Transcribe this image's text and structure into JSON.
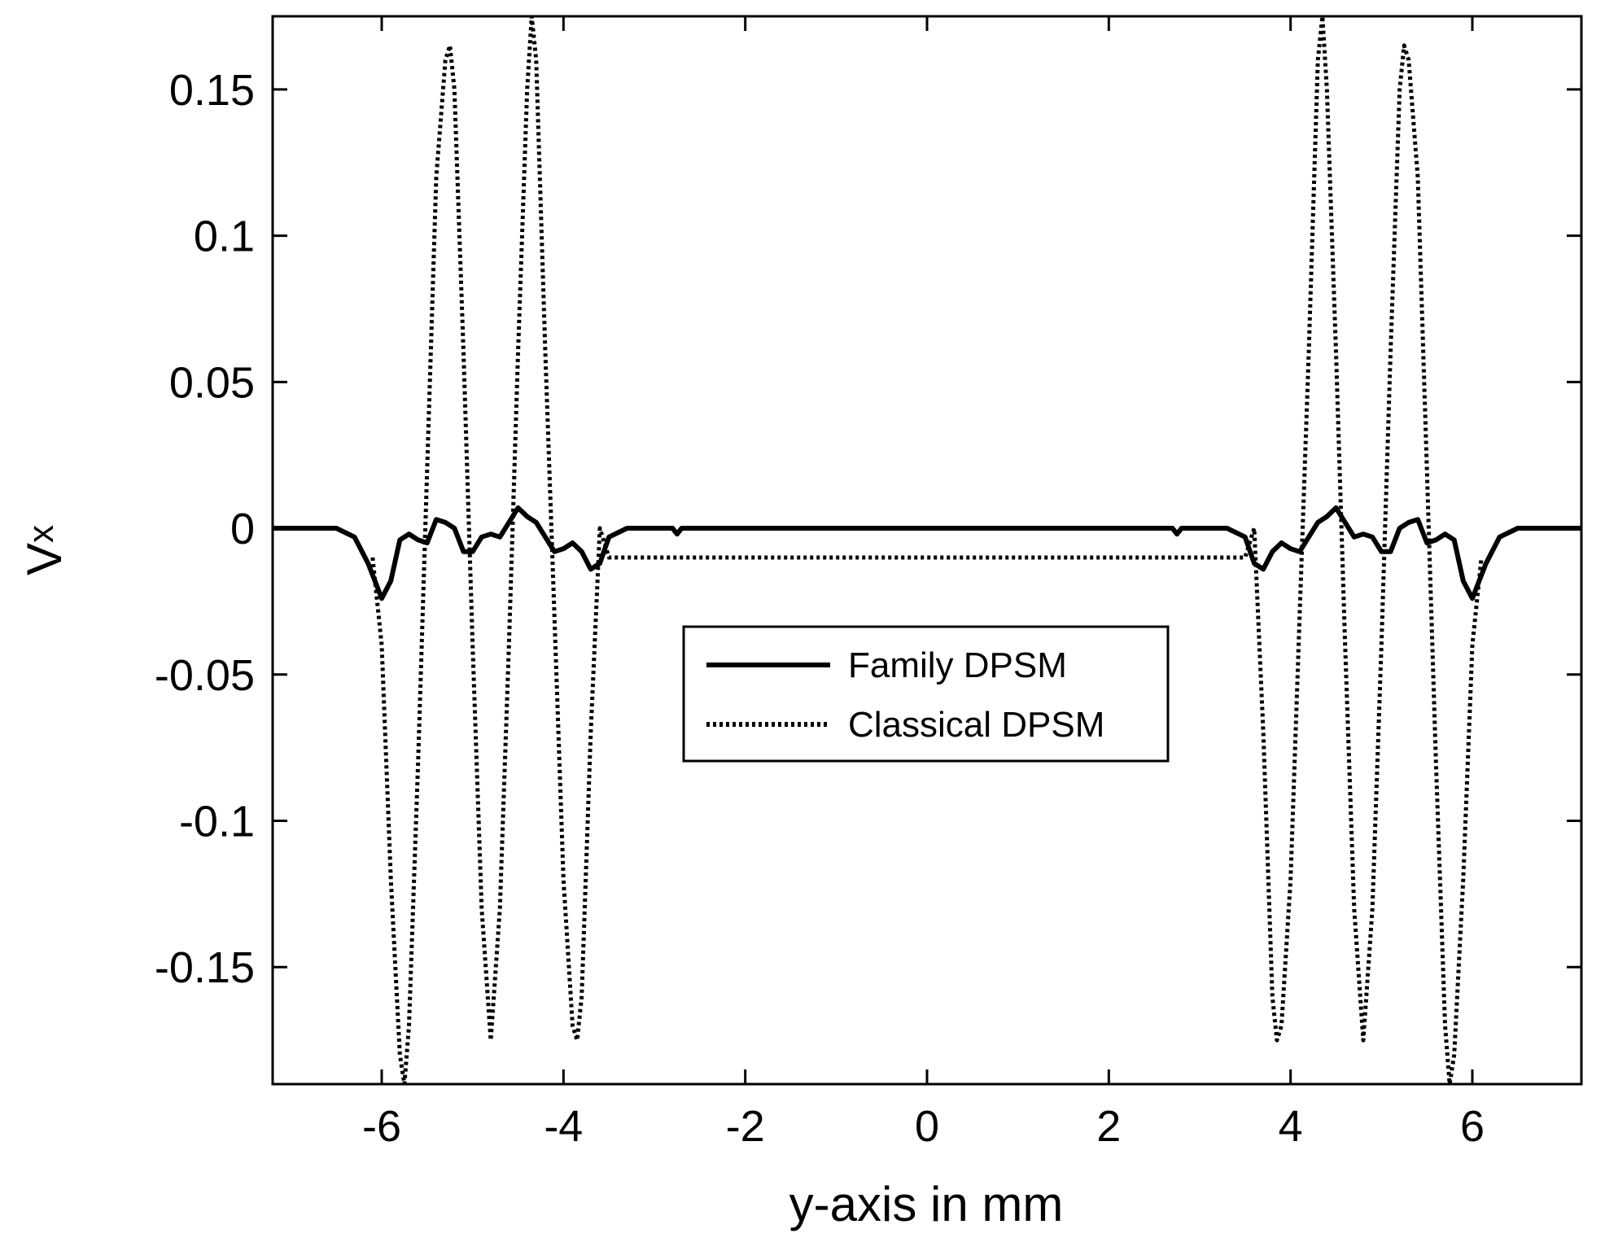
{
  "chart_data": {
    "type": "line",
    "title": "",
    "xlabel": "y-axis in mm",
    "ylabel": "V",
    "ylabel_subscript": "x",
    "xlim": [
      -7.2,
      7.2
    ],
    "ylim": [
      -0.19,
      0.175
    ],
    "xticks": [
      -6,
      -4,
      -2,
      0,
      2,
      4,
      6
    ],
    "xtick_labels": [
      "-6",
      "-4",
      "-2",
      "0",
      "2",
      "4",
      "6"
    ],
    "yticks": [
      0.15,
      0.1,
      0.05,
      0,
      -0.05,
      -0.1,
      -0.15
    ],
    "ytick_labels": [
      "0.15",
      "0.1",
      "0.05",
      "0",
      "-0.05",
      "-0.1",
      "-0.15"
    ],
    "grid": false,
    "legend_position": "center-right",
    "series": [
      {
        "name": "Family DPSM",
        "style": "solid",
        "x": [
          -7.2,
          -6.5,
          -6.3,
          -6.15,
          -6.0,
          -5.9,
          -5.8,
          -5.7,
          -5.6,
          -5.5,
          -5.4,
          -5.3,
          -5.2,
          -5.1,
          -5.0,
          -4.9,
          -4.8,
          -4.7,
          -4.6,
          -4.5,
          -4.4,
          -4.3,
          -4.2,
          -4.1,
          -4.0,
          -3.9,
          -3.8,
          -3.7,
          -3.6,
          -3.5,
          -3.3,
          -2.8,
          -2.75,
          -2.7,
          2.7,
          2.75,
          2.8,
          3.3,
          3.5,
          3.6,
          3.7,
          3.8,
          3.9,
          4.0,
          4.1,
          4.2,
          4.3,
          4.4,
          4.5,
          4.6,
          4.7,
          4.8,
          4.9,
          5.0,
          5.1,
          5.2,
          5.3,
          5.4,
          5.5,
          5.6,
          5.7,
          5.8,
          5.9,
          6.0,
          6.15,
          6.3,
          6.5,
          7.2
        ],
        "y": [
          0,
          0,
          -0.003,
          -0.012,
          -0.024,
          -0.018,
          -0.004,
          -0.002,
          -0.004,
          -0.005,
          0.003,
          0.002,
          0.0,
          -0.008,
          -0.008,
          -0.003,
          -0.002,
          -0.003,
          0.002,
          0.007,
          0.004,
          0.002,
          -0.003,
          -0.008,
          -0.007,
          -0.005,
          -0.008,
          -0.014,
          -0.012,
          -0.003,
          0,
          0,
          -0.002,
          0,
          0,
          -0.002,
          0,
          0,
          -0.003,
          -0.012,
          -0.014,
          -0.008,
          -0.005,
          -0.007,
          -0.008,
          -0.003,
          0.002,
          0.004,
          0.007,
          0.002,
          -0.003,
          -0.002,
          -0.003,
          -0.008,
          -0.008,
          0.0,
          0.002,
          0.003,
          -0.005,
          -0.004,
          -0.002,
          -0.004,
          -0.018,
          -0.024,
          -0.012,
          -0.003,
          0,
          0
        ]
      },
      {
        "name": "Classical DPSM",
        "style": "dotted",
        "x": [
          -6.1,
          -6.0,
          -5.9,
          -5.8,
          -5.75,
          -5.7,
          -5.6,
          -5.5,
          -5.4,
          -5.3,
          -5.25,
          -5.2,
          -5.1,
          -5.0,
          -4.9,
          -4.8,
          -4.7,
          -4.6,
          -4.5,
          -4.4,
          -4.35,
          -4.3,
          -4.2,
          -4.1,
          -4.0,
          -3.9,
          -3.85,
          -3.8,
          -3.7,
          -3.6,
          -3.5,
          3.5,
          3.6,
          3.7,
          3.8,
          3.85,
          3.9,
          4.0,
          4.1,
          4.2,
          4.3,
          4.35,
          4.4,
          4.5,
          4.6,
          4.7,
          4.8,
          4.9,
          5.0,
          5.1,
          5.2,
          5.25,
          5.3,
          5.4,
          5.5,
          5.6,
          5.7,
          5.75,
          5.8,
          5.9,
          6.0,
          6.1
        ],
        "y": [
          -0.01,
          -0.04,
          -0.12,
          -0.18,
          -0.19,
          -0.17,
          -0.08,
          0.02,
          0.12,
          0.16,
          0.165,
          0.15,
          0.06,
          -0.04,
          -0.13,
          -0.175,
          -0.13,
          -0.04,
          0.06,
          0.15,
          0.175,
          0.16,
          0.06,
          -0.03,
          -0.12,
          -0.17,
          -0.175,
          -0.16,
          -0.07,
          0.0,
          -0.01,
          -0.01,
          0.0,
          -0.07,
          -0.16,
          -0.175,
          -0.17,
          -0.12,
          -0.03,
          0.06,
          0.16,
          0.175,
          0.15,
          0.06,
          -0.04,
          -0.13,
          -0.175,
          -0.13,
          -0.04,
          0.06,
          0.15,
          0.165,
          0.16,
          0.12,
          0.02,
          -0.08,
          -0.17,
          -0.19,
          -0.18,
          -0.12,
          -0.04,
          -0.01
        ]
      }
    ]
  }
}
